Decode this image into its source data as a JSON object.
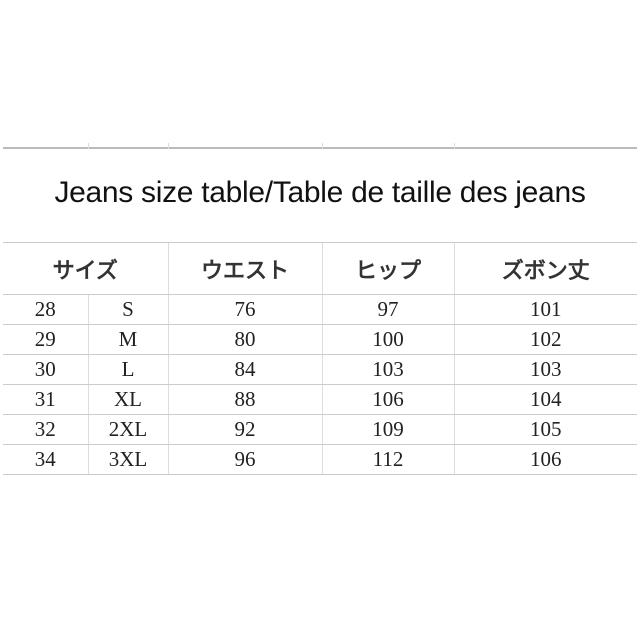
{
  "title": "Jeans size table/Table de taille des jeans",
  "headers": [
    "サイズ",
    "ウエスト",
    "ヒップ",
    "ズボン丈"
  ],
  "rows": [
    [
      "28",
      "S",
      "76",
      "97",
      "101"
    ],
    [
      "29",
      "M",
      "80",
      "100",
      "102"
    ],
    [
      "30",
      "L",
      "84",
      "103",
      "103"
    ],
    [
      "31",
      "XL",
      "88",
      "106",
      "104"
    ],
    [
      "32",
      "2XL",
      "92",
      "109",
      "105"
    ],
    [
      "34",
      "3XL",
      "96",
      "112",
      "106"
    ]
  ]
}
